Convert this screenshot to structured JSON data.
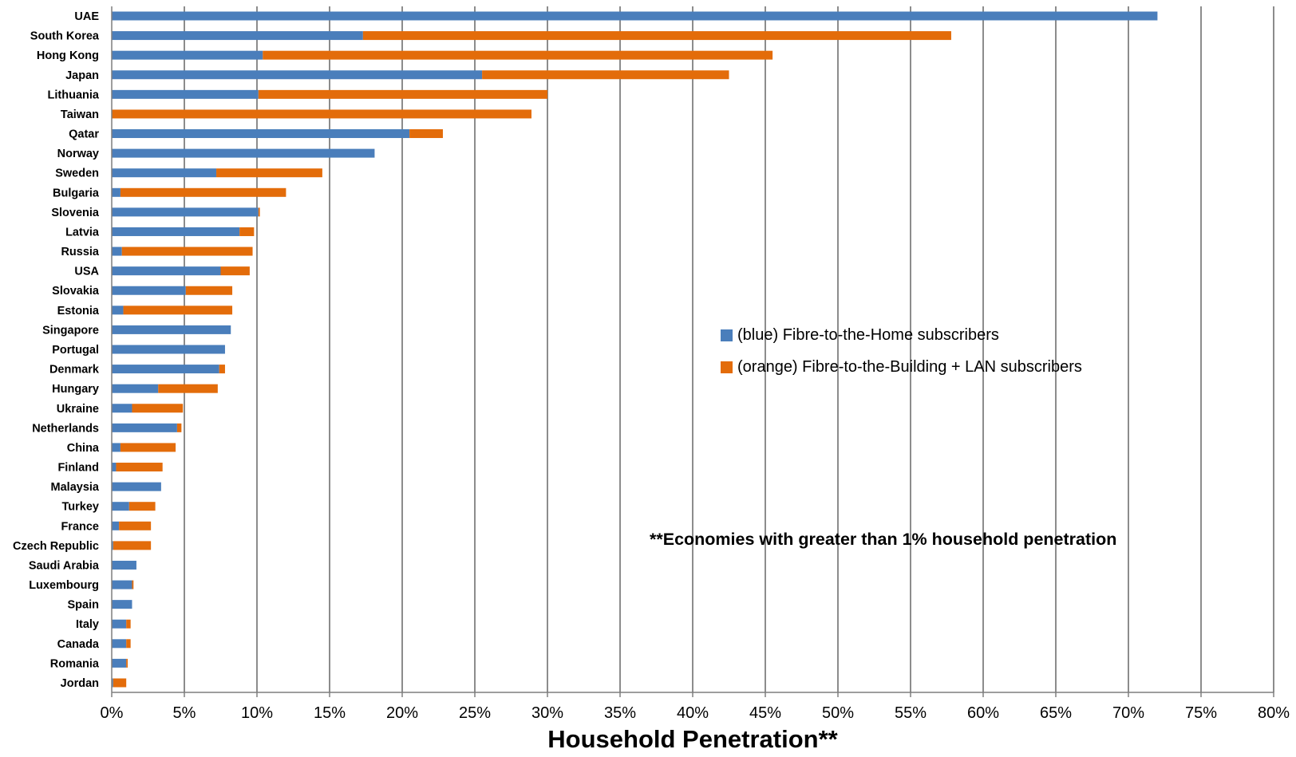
{
  "chart_data": {
    "type": "bar",
    "orientation": "horizontal",
    "stacked": true,
    "categories": [
      "UAE",
      "South Korea",
      "Hong Kong",
      "Japan",
      "Lithuania",
      "Taiwan",
      "Qatar",
      "Norway",
      "Sweden",
      "Bulgaria",
      "Slovenia",
      "Latvia",
      "Russia",
      "USA",
      "Slovakia",
      "Estonia",
      "Singapore",
      "Portugal",
      "Denmark",
      "Hungary",
      "Ukraine",
      "Netherlands",
      "China",
      "Finland",
      "Malaysia",
      "Turkey",
      "France",
      "Czech Republic",
      "Saudi Arabia",
      "Luxembourg",
      "Spain",
      "Italy",
      "Canada",
      "Romania",
      "Jordan"
    ],
    "series": [
      {
        "name": "(blue) Fibre-to-the-Home subscribers",
        "color": "#4a7ebb",
        "values": [
          72.0,
          17.3,
          10.4,
          25.5,
          10.1,
          0.0,
          20.5,
          18.1,
          7.2,
          0.6,
          10.1,
          8.8,
          0.7,
          7.5,
          5.1,
          0.8,
          8.2,
          7.8,
          7.4,
          3.2,
          1.4,
          4.5,
          0.6,
          0.3,
          3.4,
          1.2,
          0.5,
          0.1,
          1.7,
          1.4,
          1.4,
          1.0,
          1.0,
          1.0,
          0.1
        ]
      },
      {
        "name": "(orange) Fibre-to-the-Building + LAN subscribers",
        "color": "#e36c0a",
        "values": [
          0.0,
          40.5,
          35.1,
          17.0,
          19.9,
          28.9,
          2.3,
          0.0,
          7.3,
          11.4,
          0.1,
          1.0,
          9.0,
          2.0,
          3.2,
          7.5,
          0.0,
          0.0,
          0.4,
          4.1,
          3.5,
          0.3,
          3.8,
          3.2,
          0.0,
          1.8,
          2.2,
          2.6,
          0.0,
          0.1,
          0.0,
          0.3,
          0.3,
          0.1,
          0.9
        ]
      }
    ],
    "xlabel": "Household Penetration**",
    "ylabel": "",
    "xlim": [
      0,
      80
    ],
    "x_ticks": [
      "0%",
      "5%",
      "10%",
      "15%",
      "20%",
      "25%",
      "30%",
      "35%",
      "40%",
      "45%",
      "50%",
      "55%",
      "60%",
      "65%",
      "70%",
      "75%",
      "80%"
    ],
    "grid": true,
    "legend_position": "right-middle",
    "annotation": "**Economies with greater than 1% household penetration"
  }
}
